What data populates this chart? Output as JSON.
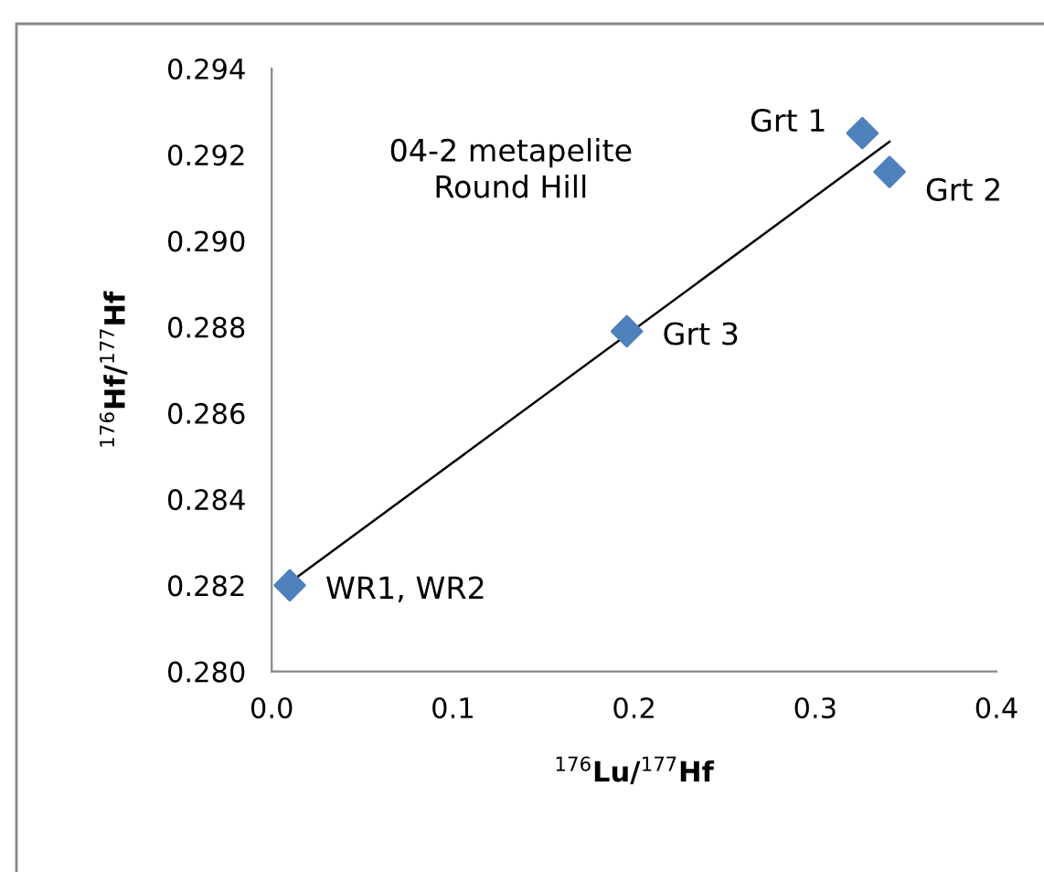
{
  "chart_data": {
    "type": "scatter",
    "xlabel": "$^{176}$Lu/$^{177}$Hf",
    "ylabel": "$^{176}$Hf/$^{177}$Hf",
    "xlim": [
      0.0,
      0.4
    ],
    "ylim": [
      0.28,
      0.294
    ],
    "xticks": [
      {
        "value": 0,
        "label": "0.0"
      },
      0.1,
      0.2,
      0.3,
      0.4
    ],
    "yticks": [
      {
        "value": 0.28,
        "label": "0.280"
      },
      0.282,
      0.284,
      0.286,
      0.288,
      {
        "value": 0.29,
        "label": "0.290"
      },
      0.292,
      0.294
    ],
    "grid": false,
    "marker": "diamond",
    "series": [
      {
        "color": "#4f81bd",
        "x": [
          0.01,
          0.196,
          0.326,
          0.341
        ],
        "values": [
          0.282,
          0.2879,
          0.2925,
          0.2916
        ]
      },
      {
        "type": "line",
        "color": "#000000",
        "x": [
          0.011,
          0.341
        ],
        "values": [
          0.2821,
          0.2923
        ],
        "marker": "none",
        "line_style": "solid"
      }
    ],
    "annotations": [
      "04-2 metapelite\nRound Hill",
      {
        "text": "WR1, WR2",
        "x": 0.01,
        "y": 0.282
      },
      {
        "text": "Grt 3",
        "x": 0.196,
        "y": 0.2879
      },
      {
        "text": "Grt 1",
        "x": 0.326,
        "y": 0.2925
      },
      {
        "text": "Grt 2",
        "x": 0.341,
        "y": 0.2916
      }
    ]
  }
}
